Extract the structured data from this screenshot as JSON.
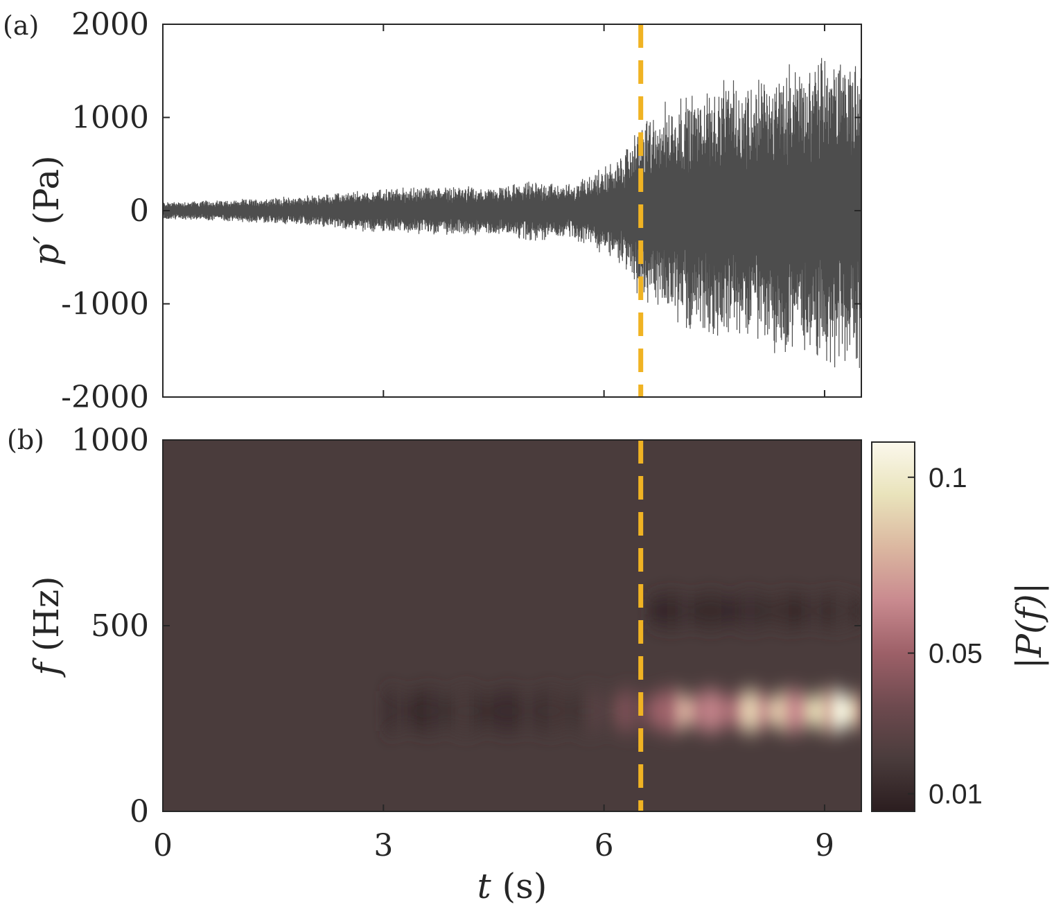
{
  "chart_data": [
    {
      "panel_label": "(a)",
      "type": "line",
      "ylabel_var": "p′",
      "ylabel_unit": "(Pa)",
      "xlim": [
        0,
        9.5
      ],
      "ylim": [
        -2000,
        2000
      ],
      "ytick_values": [
        -2000,
        -1000,
        0,
        1000,
        2000
      ],
      "ytick_labels": [
        "-2000",
        "-1000",
        "0",
        "1000",
        "2000"
      ],
      "grid": false,
      "series": [
        {
          "color": "#4d4d4d",
          "envelope": {
            "t": [
              0,
              1,
              2,
              3,
              3.8,
              4.5,
              5.1,
              5.5,
              5.9,
              6.2,
              6.5,
              7.0,
              7.5,
              8.0,
              8.5,
              9.0,
              9.5
            ],
            "amplitude": [
              90,
              110,
              150,
              220,
              250,
              230,
              300,
              260,
              400,
              520,
              900,
              1150,
              1250,
              1300,
              1450,
              1550,
              1600
            ]
          }
        }
      ],
      "marker_line": {
        "t": 6.5,
        "color": "#f0b323",
        "style": "dashed"
      }
    },
    {
      "panel_label": "(b)",
      "type": "heatmap",
      "ylabel_var": "f",
      "ylabel_unit": "(Hz)",
      "xlabel_var": "t",
      "xlabel_unit": "(s)",
      "xlim": [
        0,
        9.5
      ],
      "ylim": [
        0,
        1000
      ],
      "xtick_values": [
        0,
        3,
        6,
        9
      ],
      "xtick_labels": [
        "0",
        "3",
        "6",
        "9"
      ],
      "ytick_values": [
        0,
        500,
        1000
      ],
      "ytick_labels": [
        "0",
        "500",
        "1000"
      ],
      "colorbar": {
        "label": "|P(f)|",
        "range": [
          0.005,
          0.11
        ],
        "tick_values": [
          0.01,
          0.05,
          0.1
        ],
        "tick_labels": [
          "0.01",
          "0.05",
          "0.1"
        ],
        "colormap": [
          "#2b1d1f",
          "#4a3c3c",
          "#6e4a4f",
          "#9d6068",
          "#c98a8f",
          "#dbb7a0",
          "#e9e3bb",
          "#fbf8ec"
        ]
      },
      "bands": [
        {
          "center_hz": 270,
          "half_width_hz": 45,
          "t": [
            3.0,
            4.0,
            5.0,
            5.8,
            6.2,
            6.6,
            7.0,
            7.5,
            8.0,
            8.5,
            9.0,
            9.5
          ],
          "intensity": [
            0.014,
            0.016,
            0.014,
            0.022,
            0.03,
            0.05,
            0.062,
            0.07,
            0.075,
            0.082,
            0.09,
            0.095
          ]
        },
        {
          "center_hz": 540,
          "half_width_hz": 35,
          "t": [
            6.6,
            7.0,
            7.5,
            8.0,
            8.5,
            9.0,
            9.5
          ],
          "intensity": [
            0.012,
            0.011,
            0.013,
            0.012,
            0.014,
            0.015,
            0.014
          ]
        }
      ],
      "marker_line": {
        "t": 6.5,
        "color": "#f0b323",
        "style": "dashed"
      }
    }
  ]
}
